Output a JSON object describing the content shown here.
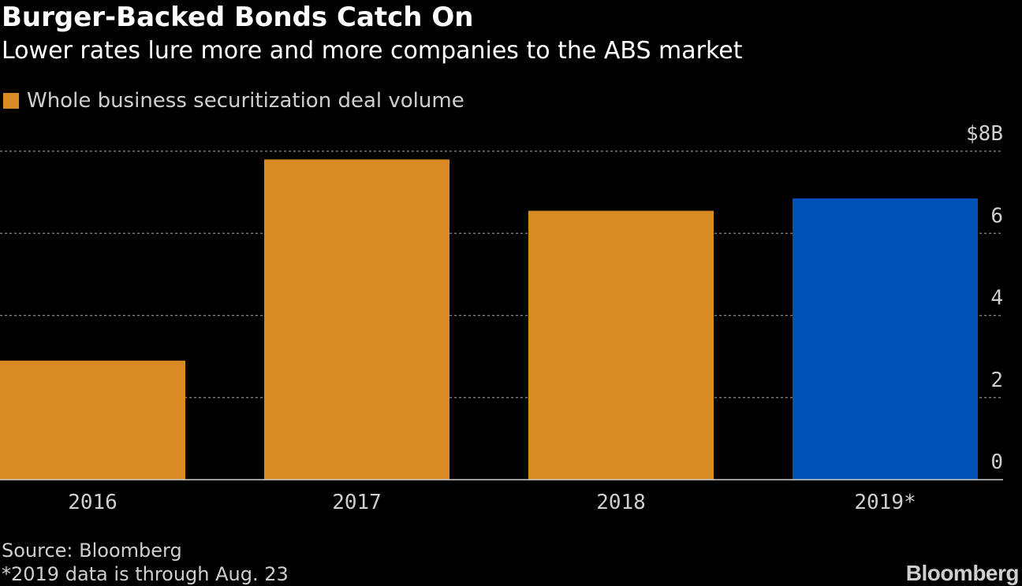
{
  "header": {
    "title": "Burger-Backed Bonds Catch On",
    "subtitle": "Lower rates lure more and more companies to the ABS market"
  },
  "legend": {
    "label": "Whole business securitization deal volume",
    "color": "#d98a22"
  },
  "footer": {
    "source": "Source: Bloomberg",
    "footnote": "*2019 data is through Aug. 23",
    "logo": "Bloomberg"
  },
  "chart_data": {
    "type": "bar",
    "categories": [
      "2016",
      "2017",
      "2018",
      "2019*"
    ],
    "series": [
      {
        "name": "Whole business securitization deal volume",
        "values": [
          2.9,
          7.8,
          6.55,
          6.85
        ]
      }
    ],
    "bar_colors": [
      "#d98a22",
      "#d98a22",
      "#d98a22",
      "#0051b8"
    ],
    "ylim": [
      0,
      8
    ],
    "yticks": [
      0,
      2,
      4,
      6,
      8
    ],
    "ytick_labels": [
      "0",
      "2",
      "4",
      "6",
      "$8B"
    ],
    "y_axis_position": "right",
    "grid": true,
    "grid_style": "dotted",
    "legend_position": "top-left",
    "xlabel": "",
    "ylabel": ""
  }
}
